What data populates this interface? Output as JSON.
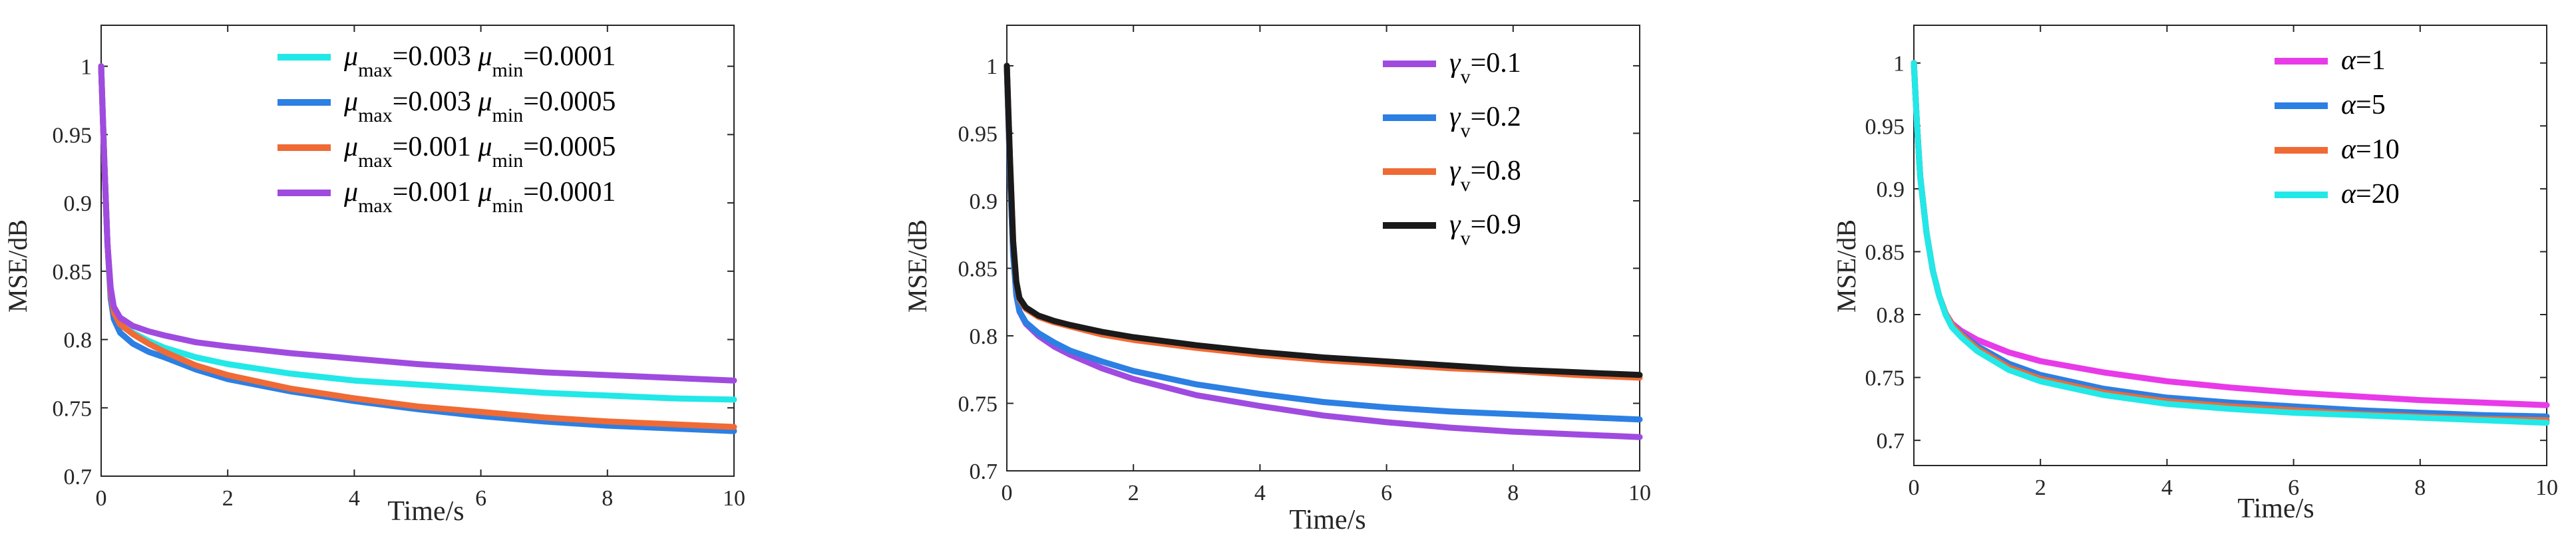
{
  "figure": {
    "panels": 3
  },
  "chart_data": [
    {
      "type": "line",
      "xlabel": "Time/s",
      "ylabel": "MSE/dB",
      "xlim": [
        0,
        10
      ],
      "ylim": [
        0.7,
        1.03
      ],
      "xticks": [
        0,
        2,
        4,
        6,
        8,
        10
      ],
      "yticks": [
        0.7,
        0.75,
        0.8,
        0.85,
        0.9,
        0.95,
        1
      ],
      "grid": false,
      "legend_position": "top-right",
      "series": [
        {
          "name": "μmax=0.003 μmin=0.0001",
          "mu_max": "0.003",
          "mu_min": "0.0001",
          "color": "#22e8e8",
          "x": [
            0,
            0.05,
            0.1,
            0.15,
            0.2,
            0.3,
            0.5,
            0.75,
            1,
            1.5,
            2,
            3,
            4,
            5,
            6,
            7,
            8,
            9,
            10
          ],
          "y": [
            1,
            0.93,
            0.87,
            0.835,
            0.82,
            0.812,
            0.805,
            0.799,
            0.794,
            0.787,
            0.782,
            0.775,
            0.77,
            0.767,
            0.764,
            0.761,
            0.759,
            0.757,
            0.756
          ]
        },
        {
          "name": "μmax=0.003 μmin=0.0005",
          "mu_max": "0.003",
          "mu_min": "0.0005",
          "color": "#2c7fe3",
          "x": [
            0,
            0.05,
            0.1,
            0.15,
            0.2,
            0.3,
            0.5,
            0.75,
            1,
            1.5,
            2,
            3,
            4,
            5,
            6,
            7,
            8,
            9,
            10
          ],
          "y": [
            1,
            0.93,
            0.87,
            0.83,
            0.815,
            0.805,
            0.797,
            0.791,
            0.787,
            0.778,
            0.771,
            0.762,
            0.755,
            0.749,
            0.744,
            0.74,
            0.737,
            0.735,
            0.733
          ]
        },
        {
          "name": "μmax=0.001 μmin=0.0005",
          "mu_max": "0.001",
          "mu_min": "0.0005",
          "color": "#f06a35",
          "x": [
            0,
            0.05,
            0.1,
            0.15,
            0.2,
            0.3,
            0.5,
            0.75,
            1,
            1.5,
            2,
            3,
            4,
            5,
            6,
            7,
            8,
            9,
            10
          ],
          "y": [
            1,
            0.93,
            0.87,
            0.835,
            0.82,
            0.811,
            0.804,
            0.797,
            0.791,
            0.781,
            0.774,
            0.764,
            0.757,
            0.751,
            0.747,
            0.743,
            0.74,
            0.738,
            0.736
          ]
        },
        {
          "name": "μmax=0.001 μmin=0.0001",
          "mu_max": "0.001",
          "mu_min": "0.0001",
          "color": "#a04be0",
          "x": [
            0,
            0.05,
            0.1,
            0.15,
            0.2,
            0.3,
            0.5,
            0.75,
            1,
            1.5,
            2,
            3,
            4,
            5,
            6,
            7,
            8,
            9,
            10
          ],
          "y": [
            1,
            0.93,
            0.87,
            0.838,
            0.824,
            0.816,
            0.81,
            0.806,
            0.803,
            0.798,
            0.795,
            0.79,
            0.786,
            0.782,
            0.779,
            0.776,
            0.774,
            0.772,
            0.77
          ]
        }
      ]
    },
    {
      "type": "line",
      "xlabel": "Time/s",
      "ylabel": "MSE/dB",
      "xlim": [
        0,
        10
      ],
      "ylim": [
        0.7,
        1.03
      ],
      "xticks": [
        0,
        2,
        4,
        6,
        8,
        10
      ],
      "yticks": [
        0.7,
        0.75,
        0.8,
        0.85,
        0.9,
        0.95,
        1
      ],
      "grid": false,
      "legend_position": "top-right",
      "series": [
        {
          "name": "γv=0.1",
          "gamma_v": "0.1",
          "color": "#a04be0",
          "x": [
            0,
            0.05,
            0.1,
            0.15,
            0.2,
            0.3,
            0.5,
            0.75,
            1,
            1.5,
            2,
            3,
            4,
            5,
            6,
            7,
            8,
            9,
            10
          ],
          "y": [
            1,
            0.92,
            0.86,
            0.83,
            0.818,
            0.809,
            0.8,
            0.792,
            0.786,
            0.776,
            0.768,
            0.756,
            0.748,
            0.741,
            0.736,
            0.732,
            0.729,
            0.727,
            0.725
          ]
        },
        {
          "name": "γv=0.2",
          "gamma_v": "0.2",
          "color": "#2c7fe3",
          "x": [
            0,
            0.05,
            0.1,
            0.15,
            0.2,
            0.3,
            0.5,
            0.75,
            1,
            1.5,
            2,
            3,
            4,
            5,
            6,
            7,
            8,
            9,
            10
          ],
          "y": [
            1,
            0.92,
            0.86,
            0.83,
            0.818,
            0.81,
            0.802,
            0.795,
            0.789,
            0.781,
            0.774,
            0.764,
            0.757,
            0.751,
            0.747,
            0.744,
            0.742,
            0.74,
            0.738
          ]
        },
        {
          "name": "γv=0.8",
          "gamma_v": "0.8",
          "color": "#f06a35",
          "x": [
            0,
            0.05,
            0.1,
            0.15,
            0.2,
            0.3,
            0.5,
            0.75,
            1,
            1.5,
            2,
            3,
            4,
            5,
            6,
            7,
            8,
            9,
            10
          ],
          "y": [
            1,
            0.93,
            0.87,
            0.84,
            0.827,
            0.82,
            0.814,
            0.81,
            0.807,
            0.801,
            0.797,
            0.791,
            0.786,
            0.782,
            0.779,
            0.776,
            0.774,
            0.771,
            0.769
          ]
        },
        {
          "name": "γv=0.9",
          "gamma_v": "0.9",
          "color": "#1a1a1a",
          "x": [
            0,
            0.05,
            0.1,
            0.15,
            0.2,
            0.3,
            0.5,
            0.75,
            1,
            1.5,
            2,
            3,
            4,
            5,
            6,
            7,
            8,
            9,
            10
          ],
          "y": [
            1,
            0.93,
            0.87,
            0.84,
            0.828,
            0.821,
            0.815,
            0.811,
            0.808,
            0.803,
            0.799,
            0.793,
            0.788,
            0.784,
            0.781,
            0.778,
            0.775,
            0.773,
            0.771
          ]
        }
      ]
    },
    {
      "type": "line",
      "xlabel": "Time/s",
      "ylabel": "MSE/dB",
      "xlim": [
        0,
        10
      ],
      "ylim": [
        0.68,
        1.03
      ],
      "xticks": [
        0,
        2,
        4,
        6,
        8,
        10
      ],
      "yticks": [
        0.7,
        0.75,
        0.8,
        0.85,
        0.9,
        0.95,
        1
      ],
      "grid": false,
      "legend_position": "top-right",
      "series": [
        {
          "name": "α=1",
          "alpha": "1",
          "color": "#e83ae8",
          "x": [
            0,
            0.05,
            0.1,
            0.2,
            0.3,
            0.4,
            0.5,
            0.6,
            0.75,
            1,
            1.5,
            2,
            3,
            4,
            5,
            6,
            7,
            8,
            9,
            10
          ],
          "y": [
            1,
            0.95,
            0.91,
            0.865,
            0.835,
            0.815,
            0.801,
            0.793,
            0.787,
            0.78,
            0.77,
            0.763,
            0.754,
            0.747,
            0.742,
            0.738,
            0.735,
            0.732,
            0.73,
            0.728
          ]
        },
        {
          "name": "α=5",
          "alpha": "5",
          "color": "#2c7fe3",
          "x": [
            0,
            0.05,
            0.1,
            0.2,
            0.3,
            0.4,
            0.5,
            0.6,
            0.75,
            1,
            1.5,
            2,
            3,
            4,
            5,
            6,
            7,
            8,
            9,
            10
          ],
          "y": [
            1,
            0.95,
            0.91,
            0.865,
            0.835,
            0.815,
            0.801,
            0.792,
            0.785,
            0.775,
            0.761,
            0.752,
            0.741,
            0.734,
            0.73,
            0.727,
            0.724,
            0.722,
            0.72,
            0.719
          ]
        },
        {
          "name": "α=10",
          "alpha": "10",
          "color": "#f06a35",
          "x": [
            0,
            0.05,
            0.1,
            0.2,
            0.3,
            0.4,
            0.5,
            0.6,
            0.75,
            1,
            1.5,
            2,
            3,
            4,
            5,
            6,
            7,
            8,
            9,
            10
          ],
          "y": [
            1,
            0.95,
            0.91,
            0.865,
            0.835,
            0.815,
            0.801,
            0.792,
            0.784,
            0.773,
            0.758,
            0.749,
            0.738,
            0.731,
            0.727,
            0.724,
            0.721,
            0.719,
            0.717,
            0.716
          ]
        },
        {
          "name": "α=20",
          "alpha": "20",
          "color": "#22e8e8",
          "x": [
            0,
            0.05,
            0.1,
            0.2,
            0.3,
            0.4,
            0.5,
            0.6,
            0.75,
            1,
            1.5,
            2,
            3,
            4,
            5,
            6,
            7,
            8,
            9,
            10
          ],
          "y": [
            1,
            0.95,
            0.91,
            0.865,
            0.835,
            0.815,
            0.8,
            0.79,
            0.782,
            0.771,
            0.756,
            0.747,
            0.736,
            0.729,
            0.725,
            0.722,
            0.72,
            0.718,
            0.716,
            0.714
          ]
        }
      ]
    }
  ]
}
